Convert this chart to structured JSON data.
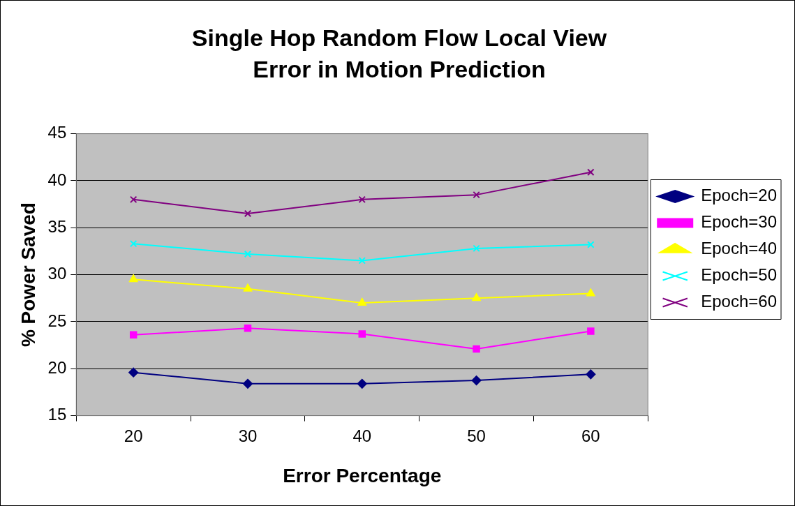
{
  "chart_data": {
    "type": "line",
    "title": "Single Hop Random Flow Local View",
    "subtitle": "Error in Motion Prediction",
    "xlabel": "Error Percentage",
    "ylabel": "% Power Saved",
    "categories": [
      "20",
      "30",
      "40",
      "50",
      "60"
    ],
    "series": [
      {
        "name": "Epoch=20",
        "color": "#000080",
        "marker": "diamond",
        "values": [
          19.6,
          18.4,
          18.4,
          18.75,
          19.4
        ]
      },
      {
        "name": "Epoch=30",
        "color": "#ff00ff",
        "marker": "square",
        "values": [
          23.6,
          24.3,
          23.7,
          22.1,
          24.0
        ]
      },
      {
        "name": "Epoch=40",
        "color": "#ffff00",
        "marker": "triangle",
        "values": [
          29.5,
          28.5,
          27.0,
          27.5,
          28.0
        ]
      },
      {
        "name": "Epoch=50",
        "color": "#00ffff",
        "marker": "cross",
        "values": [
          33.3,
          32.2,
          31.5,
          32.8,
          33.2
        ]
      },
      {
        "name": "Epoch=60",
        "color": "#800080",
        "marker": "cross",
        "values": [
          38.0,
          36.5,
          38.0,
          38.5,
          40.9
        ]
      }
    ],
    "ylim": [
      15,
      45
    ],
    "yticks": [
      15,
      20,
      25,
      30,
      35,
      40,
      45
    ],
    "grid": "y",
    "legend": "right",
    "line_style": "solid"
  }
}
